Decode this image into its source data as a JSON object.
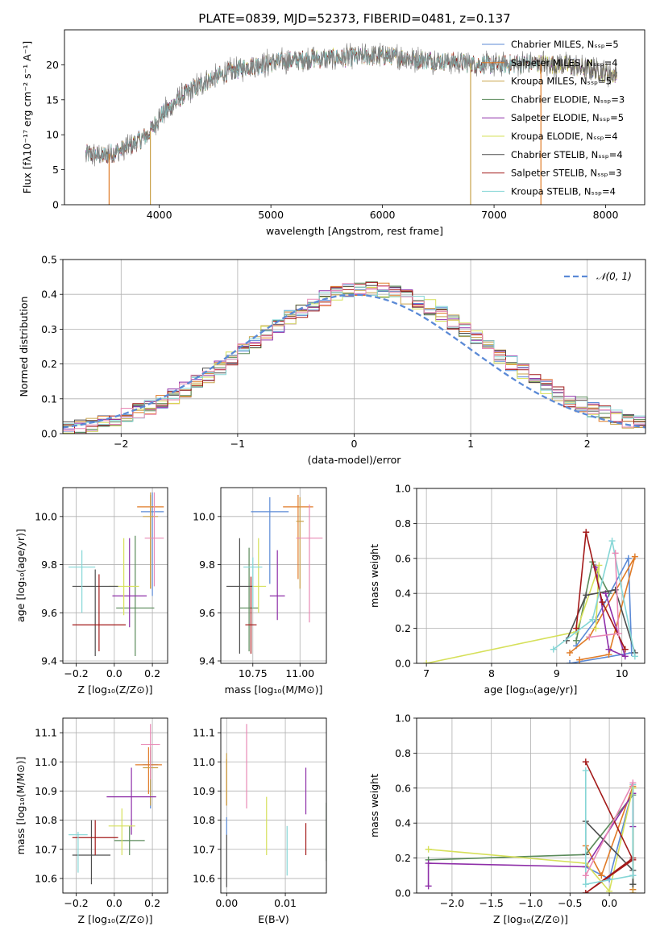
{
  "figure_title": "PLATE=0839, MJD=52373, FIBERID=0481, z=0.137",
  "colors": {
    "Chabrier MILES": "#5b8ad6",
    "Salpeter MILES": "#e07b27",
    "Kroupa MILES": "#c9a24a",
    "Chabrier ELODIE": "#5a8a5a",
    "Salpeter ELODIE": "#8e2ea8",
    "Kroupa ELODIE": "#d6e05a",
    "Chabrier STELIB": "#4d4d4d",
    "Salpeter STELIB": "#a31919",
    "Kroupa STELIB": "#85d6d6",
    "extra_pink": "#e889b5",
    "gaussian": "#5b8ad6"
  },
  "chart_data": [
    {
      "id": "spectrum",
      "type": "line",
      "xlabel": "wavelength [Angstrom, rest frame]",
      "ylabel": "Flux [fλ10⁻¹⁷ erg cm⁻² s⁻¹ A⁻¹]",
      "xlim": [
        3150,
        8350
      ],
      "ylim": [
        0,
        25
      ],
      "xticks": [
        4000,
        5000,
        6000,
        7000,
        8000
      ],
      "yticks": [
        0,
        5,
        10,
        15,
        20
      ],
      "legend_position": "top-right",
      "legend": [
        "Chabrier MILES, Nₛₛₚ=5",
        "Salpeter MILES, Nₛₛₚ=4",
        "Kroupa MILES, Nₛₛₚ=5",
        "Chabrier ELODIE, Nₛₛₚ=3",
        "Salpeter ELODIE, Nₛₛₚ=5",
        "Kroupa ELODIE, Nₛₛₚ=4",
        "Chabrier STELIB, Nₛₛₚ=4",
        "Salpeter STELIB, Nₛₛₚ=3",
        "Kroupa STELIB, Nₛₛₚ=4"
      ],
      "continuum_x": [
        3350,
        3500,
        3700,
        3900,
        4000,
        4200,
        4400,
        4600,
        4800,
        5000,
        5300,
        5600,
        6000,
        6300,
        6500,
        6700,
        7000,
        7300,
        7600,
        7900,
        8100
      ],
      "continuum_y": [
        7.2,
        7.0,
        8.0,
        10.0,
        12.5,
        15.5,
        17.5,
        18.8,
        19.8,
        20.3,
        20.8,
        21.0,
        21.3,
        20.8,
        20.6,
        20.3,
        20.0,
        20.2,
        20.0,
        19.3,
        18.5
      ]
    },
    {
      "id": "residuals",
      "type": "line",
      "xlabel": "(data-model)/error",
      "ylabel": "Normed distribution",
      "xlim": [
        -2.5,
        2.5
      ],
      "ylim": [
        0,
        0.5
      ],
      "xticks": [
        -2,
        -1,
        0,
        1,
        2
      ],
      "yticks": [
        0.0,
        0.1,
        0.2,
        0.3,
        0.4,
        0.5
      ],
      "legend_position": "top-right",
      "legend": [
        "𝒩(0, 1)"
      ],
      "gaussian": {
        "mean": 0,
        "sigma": 1
      },
      "hist_bin_edges_start": -2.5,
      "hist_bin_width": 0.1
    },
    {
      "id": "age_vs_Z",
      "type": "scatter",
      "xlabel": "Z [log₁₀(Z/Z⊙)]",
      "ylabel": "age  [log₁₀(age/yr)]",
      "xlim": [
        -0.27,
        0.28
      ],
      "ylim": [
        9.39,
        10.12
      ],
      "xticks": [
        -0.2,
        0.0,
        0.2
      ],
      "yticks": [
        9.4,
        9.6,
        9.8,
        10.0
      ],
      "points": [
        {
          "series": "Chabrier MILES",
          "x": 0.2,
          "y": 10.02,
          "xerr": 0.06,
          "yerr": [
            0.35,
            0.08
          ]
        },
        {
          "series": "Salpeter MILES",
          "x": 0.19,
          "y": 10.04,
          "xerr": 0.07,
          "yerr": [
            0.34,
            0.05
          ]
        },
        {
          "series": "Kroupa MILES",
          "x": 0.19,
          "y": 10.0,
          "xerr": 0.04,
          "yerr": [
            0.3,
            0.1
          ]
        },
        {
          "series": "Chabrier ELODIE",
          "x": 0.11,
          "y": 9.62,
          "xerr": 0.1,
          "yerr": [
            0.2,
            0.3
          ]
        },
        {
          "series": "Salpeter ELODIE",
          "x": 0.08,
          "y": 9.67,
          "xerr": 0.09,
          "yerr": [
            0.13,
            0.24
          ]
        },
        {
          "series": "Kroupa ELODIE",
          "x": 0.05,
          "y": 9.71,
          "xerr": 0.08,
          "yerr": [
            0.12,
            0.2
          ]
        },
        {
          "series": "Chabrier STELIB",
          "x": -0.1,
          "y": 9.71,
          "xerr": 0.12,
          "yerr": [
            0.29,
            0.07
          ]
        },
        {
          "series": "Salpeter STELIB",
          "x": -0.08,
          "y": 9.55,
          "xerr": 0.14,
          "yerr": [
            0.11,
            0.21
          ]
        },
        {
          "series": "Kroupa STELIB",
          "x": -0.17,
          "y": 9.79,
          "xerr": 0.07,
          "yerr": [
            0.19,
            0.07
          ]
        },
        {
          "series": "extra_pink",
          "x": 0.21,
          "y": 9.91,
          "xerr": 0.05,
          "yerr": [
            0.2,
            0.19
          ]
        }
      ]
    },
    {
      "id": "age_vs_mass",
      "type": "scatter",
      "xlabel": "mass [log₁₀(M/M⊙)]",
      "ylabel": "",
      "xlim": [
        10.58,
        11.14
      ],
      "ylim": [
        9.39,
        10.12
      ],
      "xticks": [
        10.75,
        11.0
      ],
      "yticks": [
        9.4,
        9.6,
        9.8,
        10.0
      ],
      "points": [
        {
          "series": "Chabrier MILES",
          "x": 10.84,
          "y": 10.02,
          "xerr": 0.1,
          "yerr": [
            0.3,
            0.06
          ]
        },
        {
          "series": "Salpeter MILES",
          "x": 10.99,
          "y": 10.04,
          "xerr": 0.08,
          "yerr": [
            0.3,
            0.05
          ]
        },
        {
          "series": "Kroupa MILES",
          "x": 11.0,
          "y": 9.98,
          "xerr": 0.02,
          "yerr": [
            0.28,
            0.1
          ]
        },
        {
          "series": "Chabrier ELODIE",
          "x": 10.73,
          "y": 9.62,
          "xerr": 0.05,
          "yerr": [
            0.18,
            0.25
          ]
        },
        {
          "series": "Salpeter ELODIE",
          "x": 10.88,
          "y": 9.67,
          "xerr": 0.04,
          "yerr": [
            0.1,
            0.19
          ]
        },
        {
          "series": "Kroupa ELODIE",
          "x": 10.78,
          "y": 9.71,
          "xerr": 0.04,
          "yerr": [
            0.11,
            0.2
          ]
        },
        {
          "series": "Chabrier STELIB",
          "x": 10.68,
          "y": 9.71,
          "xerr": 0.07,
          "yerr": [
            0.28,
            0.2
          ]
        },
        {
          "series": "Salpeter STELIB",
          "x": 10.74,
          "y": 9.55,
          "xerr": 0.03,
          "yerr": [
            0.12,
            0.2
          ]
        },
        {
          "series": "Kroupa STELIB",
          "x": 10.75,
          "y": 9.79,
          "xerr": 0.05,
          "yerr": [
            0.17,
            0.04
          ]
        },
        {
          "series": "extra_pink",
          "x": 11.05,
          "y": 9.91,
          "xerr": 0.07,
          "yerr": [
            0.35,
            0.14
          ]
        }
      ]
    },
    {
      "id": "weight_vs_age",
      "type": "line",
      "xlabel": "age  [log₁₀(age/yr)]",
      "ylabel": "mass weight",
      "xlim": [
        6.85,
        10.35
      ],
      "ylim": [
        0,
        1
      ],
      "xticks": [
        7,
        8,
        9,
        10
      ],
      "yticks": [
        0.0,
        0.2,
        0.4,
        0.6,
        0.8,
        1.0
      ],
      "series": [
        {
          "name": "Chabrier MILES",
          "x": [
            9.3,
            9.6,
            10.1,
            10.15,
            9.2
          ],
          "y": [
            0.1,
            0.25,
            0.6,
            0.06,
            0.0
          ]
        },
        {
          "name": "Salpeter MILES",
          "x": [
            9.2,
            9.5,
            10.2,
            9.8,
            9.35
          ],
          "y": [
            0.06,
            0.15,
            0.61,
            0.05,
            0.02
          ]
        },
        {
          "name": "Chabrier ELODIE",
          "x": [
            9.3,
            9.55,
            9.8
          ],
          "y": [
            0.13,
            0.58,
            0.4
          ]
        },
        {
          "name": "Salpeter ELODIE",
          "x": [
            9.6,
            9.8,
            10.05,
            9.75
          ],
          "y": [
            0.55,
            0.08,
            0.04,
            0.4
          ]
        },
        {
          "name": "Kroupa ELODIE",
          "x": [
            7.0,
            9.3,
            9.65,
            9.6
          ],
          "y": [
            0.0,
            0.18,
            0.56,
            0.2
          ]
        },
        {
          "name": "Chabrier STELIB",
          "x": [
            9.15,
            9.45,
            9.9,
            10.2
          ],
          "y": [
            0.13,
            0.39,
            0.42,
            0.06
          ]
        },
        {
          "name": "Salpeter STELIB",
          "x": [
            9.3,
            9.45,
            9.7,
            10.05
          ],
          "y": [
            0.2,
            0.75,
            0.35,
            0.08
          ]
        },
        {
          "name": "Kroupa STELIB",
          "x": [
            8.95,
            9.55,
            9.85,
            10.2
          ],
          "y": [
            0.08,
            0.25,
            0.7,
            0.04
          ]
        },
        {
          "name": "extra_pink",
          "x": [
            9.5,
            9.95,
            9.9
          ],
          "y": [
            0.15,
            0.17,
            0.63
          ]
        }
      ]
    },
    {
      "id": "mass_vs_Z",
      "type": "scatter",
      "xlabel": "Z [log₁₀(Z/Z⊙)]",
      "ylabel": "mass [log₁₀(M/M⊙)]",
      "xlim": [
        -0.27,
        0.28
      ],
      "ylim": [
        10.55,
        11.15
      ],
      "xticks": [
        -0.2,
        0.0,
        0.2
      ],
      "yticks": [
        10.6,
        10.7,
        10.8,
        10.9,
        11.0,
        11.1
      ],
      "points": [
        {
          "series": "Chabrier MILES",
          "x": 0.19,
          "y": 10.99,
          "xerr": 0.04,
          "yerr": [
            0.15,
            0.05
          ]
        },
        {
          "series": "Salpeter MILES",
          "x": 0.18,
          "y": 10.99,
          "xerr": 0.07,
          "yerr": [
            0.1,
            0.06
          ]
        },
        {
          "series": "Kroupa MILES",
          "x": 0.19,
          "y": 10.98,
          "xerr": 0.04,
          "yerr": [
            0.13,
            0.07
          ]
        },
        {
          "series": "Chabrier ELODIE",
          "x": 0.08,
          "y": 10.73,
          "xerr": 0.08,
          "yerr": [
            0.05,
            0.05
          ]
        },
        {
          "series": "Salpeter ELODIE",
          "x": 0.09,
          "y": 10.88,
          "xerr": 0.13,
          "yerr": [
            0.13,
            0.1
          ]
        },
        {
          "series": "Kroupa ELODIE",
          "x": 0.04,
          "y": 10.78,
          "xerr": 0.07,
          "yerr": [
            0.1,
            0.06
          ]
        },
        {
          "series": "Chabrier STELIB",
          "x": -0.12,
          "y": 10.68,
          "xerr": 0.1,
          "yerr": [
            0.1,
            0.12
          ]
        },
        {
          "series": "Salpeter STELIB",
          "x": -0.1,
          "y": 10.74,
          "xerr": 0.12,
          "yerr": [
            0.06,
            0.06
          ]
        },
        {
          "series": "Kroupa STELIB",
          "x": -0.19,
          "y": 10.75,
          "xerr": 0.05,
          "yerr": [
            0.13,
            0.01
          ]
        },
        {
          "series": "extra_pink",
          "x": 0.19,
          "y": 11.06,
          "xerr": 0.05,
          "yerr": [
            0.12,
            0.07
          ]
        }
      ]
    },
    {
      "id": "mass_vs_ebv",
      "type": "scatter",
      "xlabel": "E(B-V)",
      "ylabel": "",
      "xlim": [
        -0.001,
        0.017
      ],
      "ylim": [
        10.55,
        11.15
      ],
      "xticks": [
        0.0,
        0.01
      ],
      "yticks": [
        10.6,
        10.7,
        10.8,
        10.9,
        11.0,
        11.1
      ],
      "points": [
        {
          "series": "Chabrier MILES",
          "x": 0.0,
          "y": 10.75,
          "yerr": [
            0.0,
            0.06
          ]
        },
        {
          "series": "Salpeter MILES",
          "x": 0.0,
          "y": 10.95,
          "yerr": [
            0.1,
            0.06
          ]
        },
        {
          "series": "Kroupa MILES",
          "x": 0.0,
          "y": 10.93,
          "yerr": [
            0.08,
            0.1
          ]
        },
        {
          "series": "Chabrier ELODIE",
          "x": 0.017,
          "y": 10.76,
          "yerr": [
            0.1,
            0.1
          ]
        },
        {
          "series": "Salpeter ELODIE",
          "x": 0.0135,
          "y": 10.9,
          "yerr": [
            0.08,
            0.08
          ]
        },
        {
          "series": "Kroupa ELODIE",
          "x": 0.0068,
          "y": 10.78,
          "yerr": [
            0.1,
            0.1
          ]
        },
        {
          "series": "Chabrier STELIB",
          "x": 0.0,
          "y": 10.66,
          "yerr": [
            0.09,
            0.09
          ]
        },
        {
          "series": "Salpeter STELIB",
          "x": 0.0135,
          "y": 10.73,
          "yerr": [
            0.05,
            0.06
          ]
        },
        {
          "series": "Kroupa STELIB",
          "x": 0.0103,
          "y": 10.7,
          "yerr": [
            0.09,
            0.08
          ]
        },
        {
          "series": "extra_pink",
          "x": 0.0034,
          "y": 10.98,
          "yerr": [
            0.14,
            0.15
          ]
        }
      ]
    },
    {
      "id": "weight_vs_Z",
      "type": "line",
      "xlabel": "Z [log₁₀(Z/Z⊙)]",
      "ylabel": "mass weight",
      "xlim": [
        -2.45,
        0.45
      ],
      "ylim": [
        0,
        1
      ],
      "xticks": [
        -2.0,
        -1.5,
        -1.0,
        -0.5,
        0.0
      ],
      "yticks": [
        0.0,
        0.2,
        0.4,
        0.6,
        0.8,
        1.0
      ],
      "series": [
        {
          "name": "Chabrier MILES",
          "x": [
            -0.3,
            0.0,
            0.3,
            0.3
          ],
          "y": [
            0.15,
            0.08,
            0.6,
            0.1
          ]
        },
        {
          "name": "Salpeter MILES",
          "x": [
            -0.3,
            -0.1,
            0.3,
            0.3
          ],
          "y": [
            0.27,
            0.1,
            0.61,
            0.02
          ]
        },
        {
          "name": "Kroupa MILES",
          "x": [
            0.3,
            0.3
          ],
          "y": [
            0.0,
            0.6
          ]
        },
        {
          "name": "Chabrier ELODIE",
          "x": [
            -2.3,
            -0.3,
            0.3,
            0.3
          ],
          "y": [
            0.19,
            0.22,
            0.56,
            0.05
          ]
        },
        {
          "name": "Salpeter ELODIE",
          "x": [
            -2.3,
            -2.3,
            -0.3,
            0.3,
            0.3
          ],
          "y": [
            0.04,
            0.17,
            0.15,
            0.57,
            0.38
          ]
        },
        {
          "name": "Kroupa ELODIE",
          "x": [
            -2.3,
            -0.3,
            0.0,
            0.3
          ],
          "y": [
            0.25,
            0.17,
            0.01,
            0.6
          ]
        },
        {
          "name": "Chabrier STELIB",
          "x": [
            -0.3,
            -0.3,
            0.3,
            0.3
          ],
          "y": [
            0.22,
            0.41,
            0.13,
            0.05
          ]
        },
        {
          "name": "Salpeter STELIB",
          "x": [
            -0.3,
            0.3,
            -0.3,
            0.3
          ],
          "y": [
            0.75,
            0.19,
            0.0,
            0.2
          ]
        },
        {
          "name": "Kroupa STELIB",
          "x": [
            -0.3,
            -0.3,
            0.3,
            0.3
          ],
          "y": [
            0.7,
            0.05,
            0.1,
            0.62
          ]
        },
        {
          "name": "extra_pink",
          "x": [
            -0.3,
            0.3
          ],
          "y": [
            0.1,
            0.63
          ]
        }
      ]
    }
  ]
}
